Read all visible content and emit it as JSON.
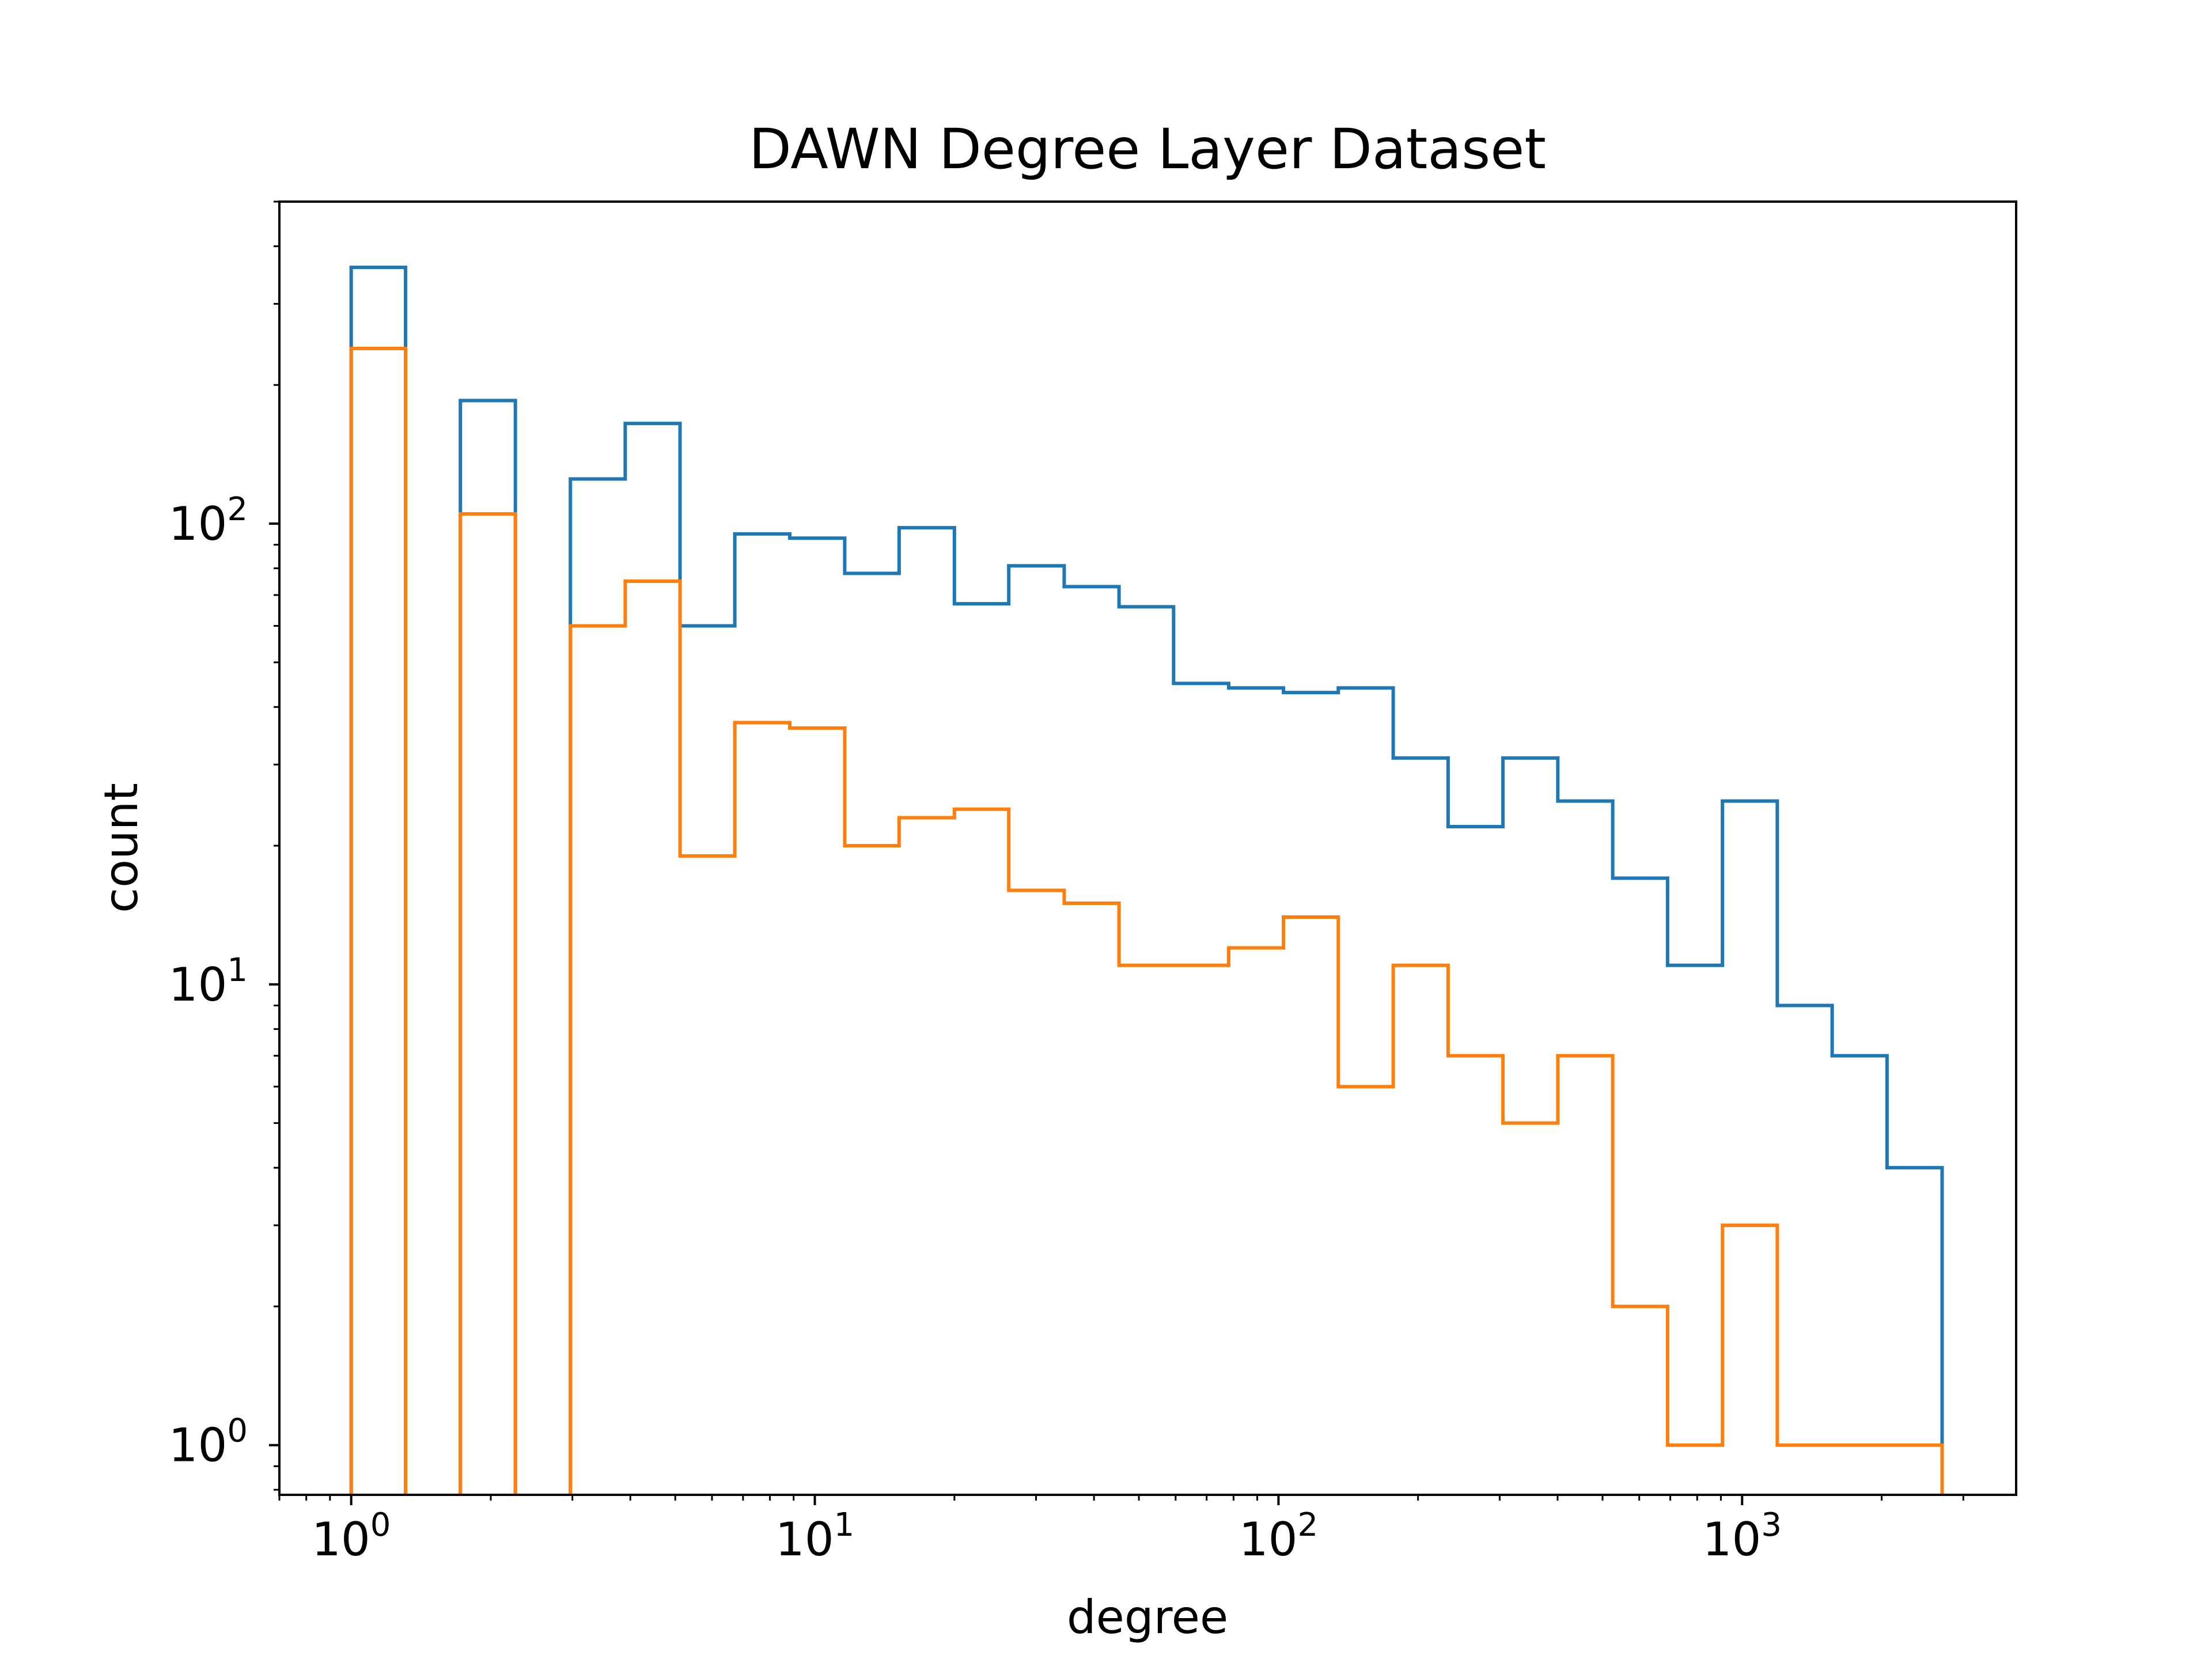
{
  "chart_data": {
    "type": "histogram",
    "title": "DAWN Degree Layer Dataset",
    "xlabel": "degree",
    "ylabel": "count",
    "xscale": "log",
    "yscale": "log",
    "xlim": [
      0.7,
      3900
    ],
    "ylim": [
      0.78,
      500
    ],
    "xticks": [
      {
        "base": "10",
        "exp": "0",
        "value": 1
      },
      {
        "base": "10",
        "exp": "1",
        "value": 10
      },
      {
        "base": "10",
        "exp": "2",
        "value": 100
      },
      {
        "base": "10",
        "exp": "3",
        "value": 1000
      }
    ],
    "yticks": [
      {
        "base": "10",
        "exp": "0",
        "value": 1
      },
      {
        "base": "10",
        "exp": "1",
        "value": 10
      },
      {
        "base": "10",
        "exp": "2",
        "value": 100
      }
    ],
    "grid": false,
    "legend": false,
    "bin_edges": [
      1.0,
      1.31,
      1.72,
      2.26,
      2.97,
      3.9,
      5.12,
      6.72,
      8.83,
      11.6,
      15.2,
      20.0,
      26.2,
      34.5,
      45.3,
      59.4,
      78.1,
      102.5,
      134.6,
      176.8,
      232.2,
      304.9,
      400.4,
      525.9,
      690.6,
      907.0,
      1191.0,
      1564.0,
      2054.0,
      2700.0
    ],
    "series": [
      {
        "name": "",
        "color": "#1f77b4",
        "counts": [
          360,
          0,
          185,
          0,
          125,
          165,
          60,
          95,
          93,
          78,
          98,
          67,
          81,
          73,
          66,
          45,
          44,
          43,
          44,
          31,
          22,
          31,
          25,
          17,
          11,
          25,
          9,
          7,
          4
        ]
      },
      {
        "name": "",
        "color": "#ff7f0e",
        "counts": [
          240,
          0,
          105,
          0,
          60,
          75,
          19,
          37,
          36,
          20,
          23,
          24,
          16,
          15,
          11,
          11,
          12,
          14,
          6,
          11,
          7,
          5,
          7,
          2,
          1,
          3,
          1,
          1,
          1
        ]
      }
    ]
  }
}
